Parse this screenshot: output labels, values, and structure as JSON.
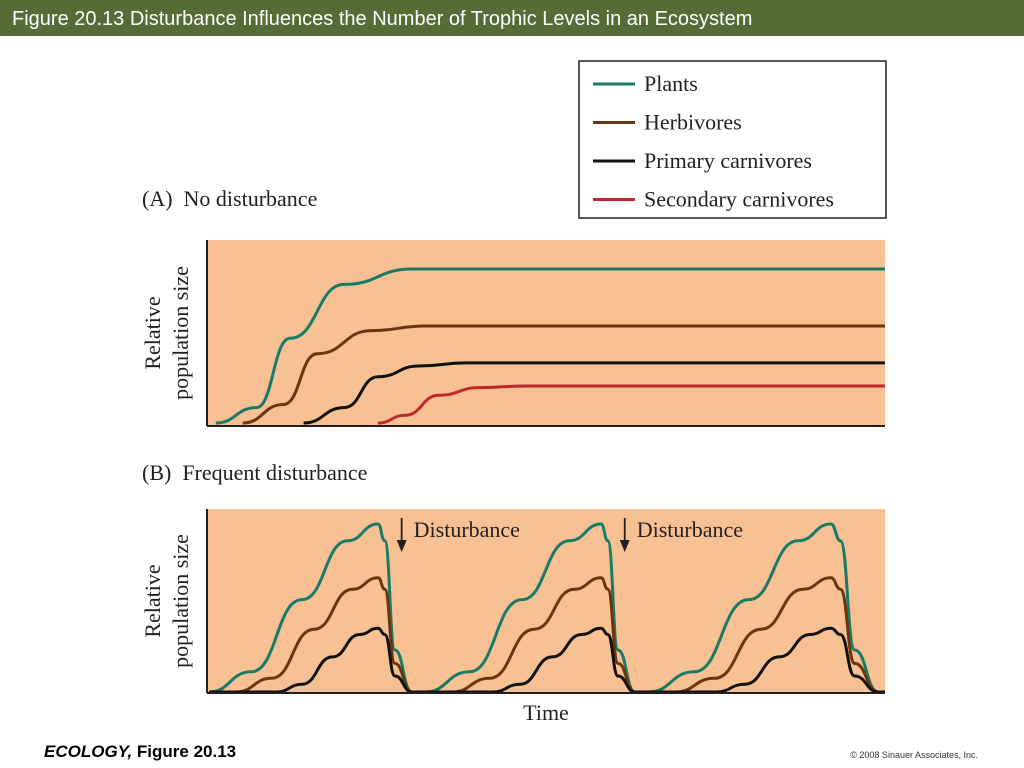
{
  "header": {
    "title": "Figure 20.13  Disturbance Influences the Number of Trophic Levels in an Ecosystem"
  },
  "footer": {
    "book": "ECOLOGY,",
    "figure": "Figure 20.13",
    "copyright": "© 2008 Sinauer Associates, Inc."
  },
  "colors": {
    "title_bar": "#566c36",
    "plot_background": "#f7c194",
    "plants": "#1a7a68",
    "herbivores": "#6b3510",
    "primary_carnivores": "#111111",
    "secondary_carnivores": "#c0282d"
  },
  "legend": {
    "placement": "top-right",
    "entries": [
      {
        "key": "plants",
        "label": "Plants"
      },
      {
        "key": "herbivores",
        "label": "Herbivores"
      },
      {
        "key": "primary_carnivores",
        "label": "Primary carnivores"
      },
      {
        "key": "secondary_carnivores",
        "label": "Secondary carnivores"
      }
    ]
  },
  "chart_data": [
    {
      "type": "line",
      "title": "(A)  No disturbance",
      "xlabel": "",
      "ylabel": "Relative population size",
      "xlim": [
        0,
        1
      ],
      "ylim": [
        0,
        1
      ],
      "grid": false,
      "series": [
        {
          "name": "Plants",
          "points": [
            [
              0.01,
              0.0
            ],
            [
              0.07,
              0.1
            ],
            [
              0.12,
              0.55
            ],
            [
              0.2,
              0.9
            ],
            [
              0.3,
              1.0
            ],
            [
              1.0,
              1.0
            ]
          ]
        },
        {
          "name": "Herbivores",
          "points": [
            [
              0.05,
              0.0
            ],
            [
              0.11,
              0.12
            ],
            [
              0.16,
              0.45
            ],
            [
              0.24,
              0.6
            ],
            [
              0.32,
              0.63
            ],
            [
              1.0,
              0.63
            ]
          ]
        },
        {
          "name": "Primary carnivores",
          "points": [
            [
              0.14,
              0.0
            ],
            [
              0.2,
              0.1
            ],
            [
              0.25,
              0.3
            ],
            [
              0.31,
              0.37
            ],
            [
              0.38,
              0.39
            ],
            [
              1.0,
              0.39
            ]
          ]
        },
        {
          "name": "Secondary carnivores",
          "points": [
            [
              0.25,
              0.0
            ],
            [
              0.29,
              0.05
            ],
            [
              0.34,
              0.18
            ],
            [
              0.4,
              0.23
            ],
            [
              0.47,
              0.24
            ],
            [
              1.0,
              0.24
            ]
          ]
        }
      ]
    },
    {
      "type": "line",
      "title": "(B)  Frequent disturbance",
      "xlabel": "Time",
      "ylabel": "Relative population size",
      "xlim": [
        0,
        1
      ],
      "ylim": [
        0,
        1
      ],
      "grid": false,
      "cycles": [
        {
          "start": 0.0,
          "peak_x": 0.25,
          "end": 0.3
        },
        {
          "start": 0.32,
          "peak_x": 0.58,
          "end": 0.63
        },
        {
          "start": 0.65,
          "peak_x": 0.92,
          "end": 0.99
        }
      ],
      "series": [
        {
          "name": "Plants",
          "peak": 1.0,
          "onset": 0.0
        },
        {
          "name": "Herbivores",
          "peak": 0.68,
          "onset": 0.04
        },
        {
          "name": "Primary carnivores",
          "peak": 0.38,
          "onset": 0.1
        }
      ],
      "annotations": [
        {
          "text": "Disturbance",
          "x": 0.285
        },
        {
          "text": "Disturbance",
          "x": 0.615
        }
      ]
    }
  ]
}
